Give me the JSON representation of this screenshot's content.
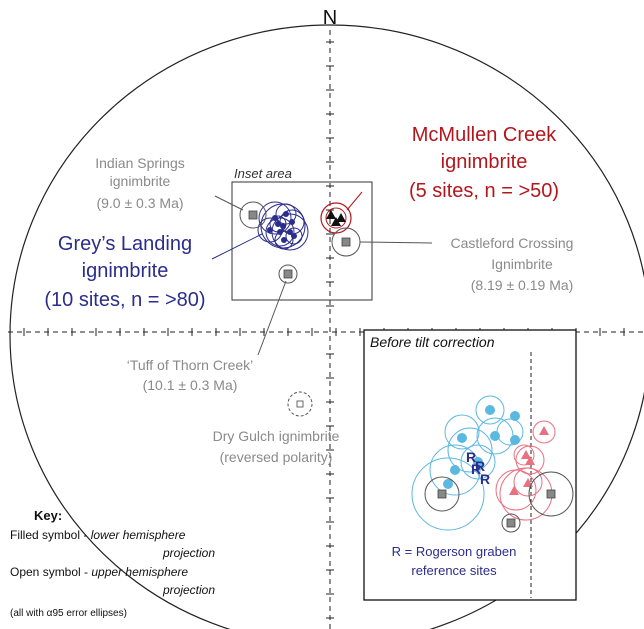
{
  "north_label": "N",
  "inset_area_label": "Inset area",
  "labels": {
    "indian_springs": {
      "line1": "Indian Springs",
      "line2": "ignimbrite",
      "line3": "(9.0 ± 0.3 Ma)"
    },
    "greys_landing": {
      "line1": "Grey’s Landing",
      "line2": "ignimbrite",
      "line3": "(10 sites, n = >80)"
    },
    "mcmullen_creek": {
      "line1": "McMullen Creek",
      "line2": "ignimbrite",
      "line3": "(5 sites, n = >50)"
    },
    "castleford": {
      "line1": "Castleford Crossing",
      "line2": "Ignimbrite",
      "line3": "(8.19 ± 0.19 Ma)"
    },
    "thorn_creek": {
      "line1": "‘Tuff of Thorn Creek’",
      "line2": "(10.1 ± 0.3 Ma)"
    },
    "dry_gulch": {
      "line1": "Dry Gulch ignimbrite",
      "line2": "(reversed polarity)"
    }
  },
  "before_tilt": {
    "title": "Before tilt correction",
    "rogerson_line1": "R = Rogerson graben",
    "rogerson_line2": "reference sites",
    "r_marker": "R"
  },
  "key": {
    "title": "Key:",
    "filled_prefix": "Filled symbol - ",
    "filled_italic1": "lower hemisphere",
    "filled_italic2": "projection",
    "open_prefix": "Open symbol - ",
    "open_italic1": "upper hemisphere",
    "open_italic2": "projection",
    "note": "(all with α95 error ellipses)"
  },
  "colors": {
    "navy": "#2b2d8c",
    "red": "#b3161c",
    "gray": "#8a8a8a",
    "light_blue": "#5bb8e0",
    "pink": "#e8707f"
  }
}
